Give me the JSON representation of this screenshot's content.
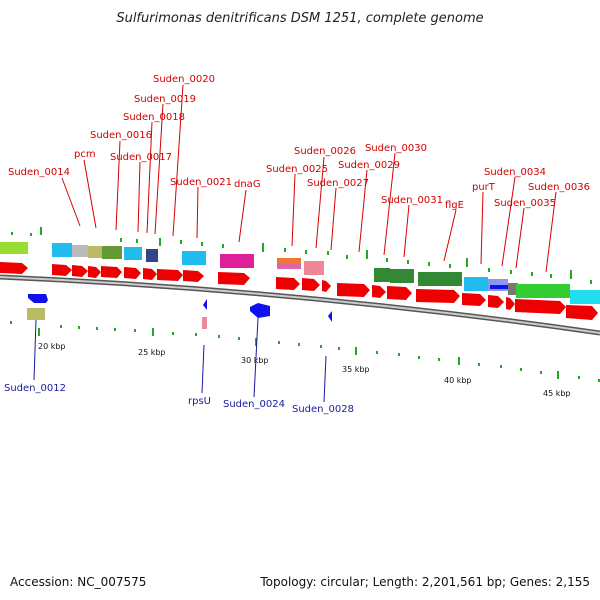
{
  "title": "Sulfurimonas denitrificans DSM 1251, complete genome",
  "footer": {
    "accession": "Accession: NC_007575",
    "stats": "Topology: circular; Length: 2,201,561 bp; Genes: 2,155"
  },
  "colors": {
    "forward": "#ee0000",
    "reverse": "#1010ee",
    "top_label": "#d40000",
    "bottom_label": "#1a1aa0",
    "tick": "#22aa22",
    "backbone": "#888888"
  },
  "scale_labels": [
    "20 kbp",
    "25 kbp",
    "30 kbp",
    "35 kbp",
    "40 kbp",
    "45 kbp"
  ],
  "top_labels": [
    "Suden_0014",
    "pcm",
    "Suden_0016",
    "Suden_0017",
    "Suden_0018",
    "Suden_0019",
    "Suden_0020",
    "Suden_0021",
    "dnaG",
    "Suden_0025",
    "Suden_0026",
    "Suden_0027",
    "Suden_0029",
    "Suden_0030",
    "Suden_0031",
    "flgE",
    "purT",
    "Suden_0034",
    "Suden_0035",
    "Suden_0036"
  ],
  "bottom_labels": [
    "Suden_0012",
    "rpsU",
    "Suden_0024",
    "Suden_0028"
  ]
}
